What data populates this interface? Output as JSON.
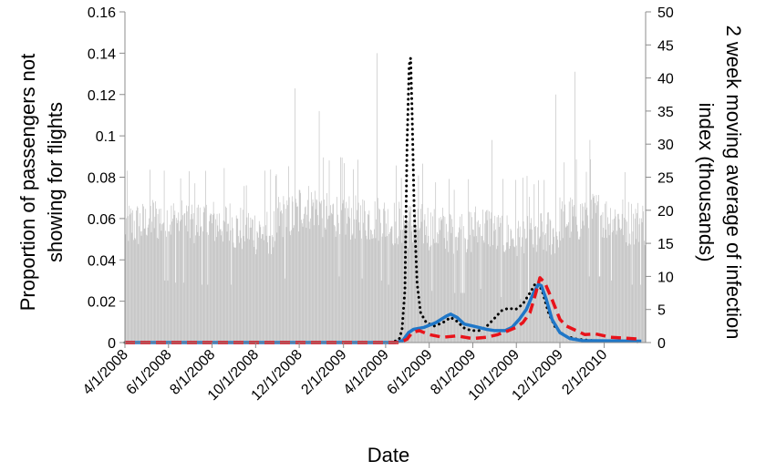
{
  "chart_data": {
    "type": "bar+line",
    "title": "",
    "xlabel": "Date",
    "ylabel_left": "Proportion of passengers not showing for flights",
    "ylabel_left_lines": [
      "Proportion of passengers not",
      "showing for flights"
    ],
    "ylabel_right": "2 week moving average of infection index (thousands)",
    "ylabel_right_lines": [
      "2 week moving average of infection",
      "index (thousands)"
    ],
    "x_range": [
      "2008-04-01",
      "2010-03-31"
    ],
    "y_left_range": [
      0,
      0.16
    ],
    "y_left_ticks": [
      "0",
      "0.02",
      "0.04",
      "0.06",
      "0.08",
      "0.1",
      "0.12",
      "0.14",
      "0.16"
    ],
    "y_right_range": [
      0,
      50
    ],
    "y_right_ticks": [
      "0",
      "5",
      "10",
      "15",
      "20",
      "25",
      "30",
      "35",
      "40",
      "45",
      "50"
    ],
    "x_ticks": [
      "4/1/2008",
      "6/1/2008",
      "8/1/2008",
      "10/1/2008",
      "12/1/2008",
      "2/1/2009",
      "4/1/2009",
      "6/1/2009",
      "8/1/2009",
      "10/1/2009",
      "12/1/2009",
      "2/1/2010"
    ],
    "grid": false,
    "legend": "none",
    "bar_series": {
      "axis": "left",
      "color": "#c0c0c0",
      "frequency": "daily",
      "monthly_levels": [
        {
          "month": "2008-04",
          "base": 0.057
        },
        {
          "month": "2008-05",
          "base": 0.06
        },
        {
          "month": "2008-06",
          "base": 0.059
        },
        {
          "month": "2008-07",
          "base": 0.058
        },
        {
          "month": "2008-08",
          "base": 0.058
        },
        {
          "month": "2008-09",
          "base": 0.055
        },
        {
          "month": "2008-10",
          "base": 0.054
        },
        {
          "month": "2008-11",
          "base": 0.061
        },
        {
          "month": "2008-12",
          "base": 0.066
        },
        {
          "month": "2009-01",
          "base": 0.062
        },
        {
          "month": "2009-02",
          "base": 0.061
        },
        {
          "month": "2009-03",
          "base": 0.06
        },
        {
          "month": "2009-04",
          "base": 0.058
        },
        {
          "month": "2009-05",
          "base": 0.057
        },
        {
          "month": "2009-06",
          "base": 0.055
        },
        {
          "month": "2009-07",
          "base": 0.054
        },
        {
          "month": "2009-08",
          "base": 0.056
        },
        {
          "month": "2009-09",
          "base": 0.052
        },
        {
          "month": "2009-10",
          "base": 0.051
        },
        {
          "month": "2009-11",
          "base": 0.053
        },
        {
          "month": "2009-12",
          "base": 0.06
        },
        {
          "month": "2010-01",
          "base": 0.062
        },
        {
          "month": "2010-02",
          "base": 0.06
        },
        {
          "month": "2010-03",
          "base": 0.058
        }
      ],
      "peaks": [
        {
          "date": "2008-11-25",
          "value": 0.123
        },
        {
          "date": "2008-12-29",
          "value": 0.112
        },
        {
          "date": "2009-03-20",
          "value": 0.14
        },
        {
          "date": "2009-08-28",
          "value": 0.098
        },
        {
          "date": "2009-11-25",
          "value": 0.12
        },
        {
          "date": "2009-12-22",
          "value": 0.131
        },
        {
          "date": "2010-01-12",
          "value": 0.098
        }
      ]
    },
    "series": [
      {
        "axis": "right",
        "color": "#000000",
        "style": "dotted",
        "points": [
          [
            "2008-04-01",
            0
          ],
          [
            "2009-04-10",
            0
          ],
          [
            "2009-04-20",
            0.5
          ],
          [
            "2009-04-24",
            2
          ],
          [
            "2009-04-28",
            8
          ],
          [
            "2009-05-01",
            30
          ],
          [
            "2009-05-04",
            42
          ],
          [
            "2009-05-06",
            43
          ],
          [
            "2009-05-08",
            35
          ],
          [
            "2009-05-11",
            20
          ],
          [
            "2009-05-15",
            9
          ],
          [
            "2009-05-20",
            4.5
          ],
          [
            "2009-05-28",
            3
          ],
          [
            "2009-06-08",
            2.5
          ],
          [
            "2009-06-20",
            3
          ],
          [
            "2009-07-01",
            3.8
          ],
          [
            "2009-07-10",
            3.2
          ],
          [
            "2009-07-20",
            2.2
          ],
          [
            "2009-07-30",
            1.8
          ],
          [
            "2009-08-10",
            1.8
          ],
          [
            "2009-08-20",
            2.4
          ],
          [
            "2009-08-30",
            3.5
          ],
          [
            "2009-09-10",
            4.8
          ],
          [
            "2009-09-20",
            5.2
          ],
          [
            "2009-09-30",
            5.0
          ],
          [
            "2009-10-10",
            5.8
          ],
          [
            "2009-10-20",
            7.5
          ],
          [
            "2009-10-27",
            8.8
          ],
          [
            "2009-11-01",
            9.0
          ],
          [
            "2009-11-07",
            7.5
          ],
          [
            "2009-11-15",
            4.5
          ],
          [
            "2009-11-25",
            2.2
          ],
          [
            "2009-12-08",
            1.0
          ],
          [
            "2009-12-25",
            0.5
          ],
          [
            "2010-01-15",
            0.3
          ],
          [
            "2010-03-25",
            0.1
          ]
        ]
      },
      {
        "axis": "right",
        "color": "#1f77c8",
        "style": "solid",
        "points": [
          [
            "2008-04-01",
            0
          ],
          [
            "2009-04-15",
            0
          ],
          [
            "2009-04-25",
            0.3
          ],
          [
            "2009-05-03",
            1.5
          ],
          [
            "2009-05-10",
            2.0
          ],
          [
            "2009-05-25",
            2.3
          ],
          [
            "2009-06-10",
            3.0
          ],
          [
            "2009-06-25",
            4.0
          ],
          [
            "2009-07-01",
            4.3
          ],
          [
            "2009-07-10",
            3.8
          ],
          [
            "2009-07-20",
            2.8
          ],
          [
            "2009-08-05",
            2.4
          ],
          [
            "2009-08-20",
            2.0
          ],
          [
            "2009-09-01",
            1.8
          ],
          [
            "2009-09-15",
            1.8
          ],
          [
            "2009-09-25",
            2.3
          ],
          [
            "2009-10-05",
            3.5
          ],
          [
            "2009-10-15",
            5.0
          ],
          [
            "2009-10-25",
            7.5
          ],
          [
            "2009-11-01",
            8.8
          ],
          [
            "2009-11-05",
            8.6
          ],
          [
            "2009-11-12",
            6.5
          ],
          [
            "2009-11-20",
            3.5
          ],
          [
            "2009-12-01",
            1.5
          ],
          [
            "2009-12-15",
            0.6
          ],
          [
            "2010-01-01",
            0.3
          ],
          [
            "2010-03-25",
            0.2
          ]
        ]
      },
      {
        "axis": "right",
        "color": "#e8131b",
        "style": "dashed",
        "points": [
          [
            "2008-04-01",
            0
          ],
          [
            "2009-04-20",
            0
          ],
          [
            "2009-05-01",
            0.5
          ],
          [
            "2009-05-08",
            1.5
          ],
          [
            "2009-05-18",
            1.8
          ],
          [
            "2009-06-01",
            1.2
          ],
          [
            "2009-06-20",
            0.8
          ],
          [
            "2009-07-10",
            1.0
          ],
          [
            "2009-08-01",
            0.6
          ],
          [
            "2009-08-20",
            0.8
          ],
          [
            "2009-09-05",
            1.2
          ],
          [
            "2009-09-20",
            1.8
          ],
          [
            "2009-10-01",
            2.3
          ],
          [
            "2009-10-10",
            3.0
          ],
          [
            "2009-10-20",
            4.5
          ],
          [
            "2009-10-27",
            7.0
          ],
          [
            "2009-11-03",
            9.8
          ],
          [
            "2009-11-10",
            9.0
          ],
          [
            "2009-11-20",
            6.5
          ],
          [
            "2009-12-01",
            3.5
          ],
          [
            "2009-12-10",
            2.5
          ],
          [
            "2009-12-20",
            2.0
          ],
          [
            "2010-01-05",
            1.2
          ],
          [
            "2010-01-20",
            1.3
          ],
          [
            "2010-02-10",
            0.8
          ],
          [
            "2010-03-25",
            0.5
          ]
        ]
      }
    ]
  }
}
